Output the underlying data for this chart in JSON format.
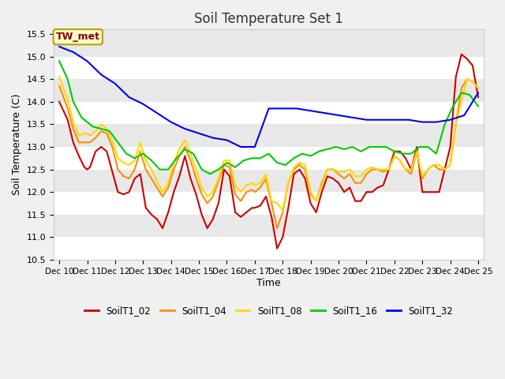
{
  "title": "Soil Temperature Set 1",
  "xlabel": "Time",
  "ylabel": "Soil Temperature (C)",
  "ylim": [
    10.5,
    15.6
  ],
  "fig_bg_color": "#f0f0f0",
  "plot_bg_color": "#e8e8e8",
  "annotation_text": "TW_met",
  "annotation_bg": "#ffffcc",
  "annotation_border": "#b8a000",
  "annotation_text_color": "#880000",
  "grid_color": "#ffffff",
  "series": {
    "SoilT1_02": {
      "color": "#cc0000",
      "x": [
        0,
        0.3,
        0.5,
        0.7,
        0.9,
        1.0,
        1.1,
        1.3,
        1.5,
        1.7,
        1.9,
        2.1,
        2.3,
        2.5,
        2.7,
        2.9,
        3.1,
        3.3,
        3.5,
        3.7,
        3.9,
        4.1,
        4.3,
        4.5,
        4.7,
        4.9,
        5.1,
        5.3,
        5.5,
        5.7,
        5.9,
        6.1,
        6.3,
        6.5,
        6.7,
        6.9,
        7.0,
        7.2,
        7.4,
        7.6,
        7.8,
        8.0,
        8.2,
        8.4,
        8.6,
        8.8,
        9.0,
        9.2,
        9.4,
        9.6,
        9.8,
        10.0,
        10.2,
        10.4,
        10.6,
        10.8,
        11.0,
        11.2,
        11.4,
        11.6,
        11.8,
        12.0,
        12.2,
        12.4,
        12.6,
        12.8,
        13.0,
        13.2,
        13.4,
        13.6,
        13.8,
        14.0,
        14.2,
        14.4,
        14.6,
        14.8,
        15.0
      ],
      "y": [
        14.0,
        13.6,
        13.1,
        12.8,
        12.55,
        12.5,
        12.55,
        12.9,
        13.0,
        12.9,
        12.45,
        12.0,
        11.95,
        12.0,
        12.3,
        12.4,
        11.65,
        11.5,
        11.4,
        11.2,
        11.55,
        12.0,
        12.35,
        12.8,
        12.3,
        11.95,
        11.5,
        11.2,
        11.4,
        11.75,
        12.5,
        12.35,
        11.55,
        11.45,
        11.55,
        11.65,
        11.65,
        11.7,
        11.9,
        11.45,
        10.75,
        11.0,
        11.65,
        12.4,
        12.5,
        12.3,
        11.75,
        11.55,
        12.0,
        12.35,
        12.3,
        12.2,
        12.0,
        12.1,
        11.8,
        11.8,
        12.0,
        12.0,
        12.1,
        12.15,
        12.5,
        12.9,
        12.9,
        12.75,
        12.5,
        13.0,
        12.0,
        12.0,
        12.0,
        12.0,
        12.5,
        13.0,
        14.55,
        15.05,
        14.95,
        14.8,
        14.1
      ]
    },
    "SoilT1_04": {
      "color": "#ff8c00",
      "x": [
        0,
        0.3,
        0.5,
        0.7,
        0.9,
        1.0,
        1.1,
        1.3,
        1.5,
        1.7,
        1.9,
        2.1,
        2.3,
        2.5,
        2.7,
        2.9,
        3.1,
        3.3,
        3.5,
        3.7,
        3.9,
        4.1,
        4.3,
        4.5,
        4.7,
        4.9,
        5.1,
        5.3,
        5.5,
        5.7,
        5.9,
        6.1,
        6.3,
        6.5,
        6.7,
        6.9,
        7.0,
        7.2,
        7.4,
        7.6,
        7.8,
        8.0,
        8.2,
        8.4,
        8.6,
        8.8,
        9.0,
        9.2,
        9.4,
        9.6,
        9.8,
        10.0,
        10.2,
        10.4,
        10.6,
        10.8,
        11.0,
        11.2,
        11.4,
        11.6,
        11.8,
        12.0,
        12.2,
        12.4,
        12.6,
        12.8,
        13.0,
        13.2,
        13.4,
        13.6,
        13.8,
        14.0,
        14.2,
        14.4,
        14.6,
        14.8,
        15.0
      ],
      "y": [
        14.35,
        13.85,
        13.4,
        13.1,
        13.1,
        13.1,
        13.1,
        13.2,
        13.35,
        13.3,
        13.0,
        12.5,
        12.35,
        12.3,
        12.5,
        12.9,
        12.5,
        12.3,
        12.1,
        11.9,
        12.1,
        12.5,
        12.8,
        13.0,
        12.7,
        12.3,
        11.95,
        11.75,
        11.9,
        12.25,
        12.6,
        12.55,
        11.95,
        11.8,
        12.0,
        12.05,
        12.0,
        12.1,
        12.3,
        11.75,
        11.2,
        11.55,
        12.2,
        12.5,
        12.6,
        12.5,
        11.95,
        11.8,
        12.2,
        12.5,
        12.5,
        12.4,
        12.3,
        12.4,
        12.2,
        12.2,
        12.4,
        12.5,
        12.5,
        12.45,
        12.5,
        12.8,
        12.7,
        12.5,
        12.4,
        12.9,
        12.3,
        12.5,
        12.6,
        12.5,
        12.5,
        12.6,
        13.5,
        14.3,
        14.5,
        14.45,
        14.3
      ]
    },
    "SoilT1_08": {
      "color": "#ffd700",
      "x": [
        0,
        0.3,
        0.5,
        0.7,
        0.9,
        1.0,
        1.1,
        1.3,
        1.5,
        1.7,
        1.9,
        2.1,
        2.3,
        2.5,
        2.7,
        2.9,
        3.1,
        3.3,
        3.5,
        3.7,
        3.9,
        4.1,
        4.3,
        4.5,
        4.7,
        4.9,
        5.1,
        5.3,
        5.5,
        5.7,
        5.9,
        6.1,
        6.3,
        6.5,
        6.7,
        6.9,
        7.0,
        7.2,
        7.4,
        7.6,
        7.8,
        8.0,
        8.2,
        8.4,
        8.6,
        8.8,
        9.0,
        9.2,
        9.4,
        9.6,
        9.8,
        10.0,
        10.2,
        10.4,
        10.6,
        10.8,
        11.0,
        11.2,
        11.4,
        11.6,
        11.8,
        12.0,
        12.2,
        12.4,
        12.6,
        12.8,
        13.0,
        13.2,
        13.4,
        13.6,
        13.8,
        14.0,
        14.2,
        14.4,
        14.6,
        14.8,
        15.0
      ],
      "y": [
        14.55,
        14.05,
        13.55,
        13.25,
        13.3,
        13.3,
        13.25,
        13.35,
        13.5,
        13.4,
        13.15,
        12.75,
        12.65,
        12.6,
        12.7,
        13.1,
        12.7,
        12.5,
        12.25,
        12.0,
        12.2,
        12.65,
        12.95,
        13.15,
        12.85,
        12.5,
        12.1,
        11.9,
        12.0,
        12.3,
        12.7,
        12.7,
        12.15,
        12.0,
        12.15,
        12.2,
        12.15,
        12.2,
        12.4,
        11.8,
        11.75,
        11.6,
        12.2,
        12.55,
        12.65,
        12.6,
        12.0,
        11.8,
        12.15,
        12.5,
        12.5,
        12.45,
        12.45,
        12.5,
        12.35,
        12.35,
        12.5,
        12.55,
        12.5,
        12.5,
        12.5,
        12.8,
        12.7,
        12.5,
        12.5,
        12.9,
        12.35,
        12.5,
        12.6,
        12.6,
        12.5,
        12.6,
        13.5,
        14.0,
        14.5,
        14.45,
        14.3
      ]
    },
    "SoilT1_16": {
      "color": "#00cc00",
      "x": [
        0,
        0.3,
        0.5,
        0.8,
        1.0,
        1.2,
        1.5,
        1.8,
        2.1,
        2.4,
        2.7,
        3.0,
        3.3,
        3.6,
        3.9,
        4.2,
        4.5,
        4.8,
        5.1,
        5.4,
        5.7,
        6.0,
        6.3,
        6.6,
        6.9,
        7.2,
        7.5,
        7.8,
        8.1,
        8.4,
        8.7,
        9.0,
        9.3,
        9.6,
        9.9,
        10.2,
        10.5,
        10.8,
        11.1,
        11.4,
        11.7,
        12.0,
        12.3,
        12.6,
        12.9,
        13.2,
        13.5,
        13.8,
        14.1,
        14.4,
        14.7,
        15.0
      ],
      "y": [
        14.9,
        14.5,
        14.0,
        13.65,
        13.55,
        13.45,
        13.4,
        13.35,
        13.1,
        12.85,
        12.75,
        12.85,
        12.7,
        12.5,
        12.5,
        12.75,
        12.95,
        12.85,
        12.5,
        12.4,
        12.5,
        12.65,
        12.55,
        12.7,
        12.75,
        12.75,
        12.85,
        12.65,
        12.6,
        12.75,
        12.85,
        12.8,
        12.9,
        12.95,
        13.0,
        12.95,
        13.0,
        12.9,
        13.0,
        13.0,
        13.0,
        12.9,
        12.85,
        12.85,
        13.0,
        13.0,
        12.85,
        13.5,
        13.9,
        14.2,
        14.15,
        13.9
      ]
    },
    "SoilT1_32": {
      "color": "#0000ee",
      "x": [
        0,
        0.5,
        1.0,
        1.5,
        2.0,
        2.5,
        3.0,
        3.5,
        4.0,
        4.5,
        5.0,
        5.5,
        6.0,
        6.5,
        7.0,
        7.5,
        8.0,
        8.5,
        9.0,
        9.5,
        10.0,
        10.5,
        11.0,
        11.5,
        12.0,
        12.5,
        13.0,
        13.5,
        14.0,
        14.5,
        15.0
      ],
      "y": [
        15.22,
        15.1,
        14.9,
        14.6,
        14.4,
        14.1,
        13.95,
        13.75,
        13.55,
        13.4,
        13.3,
        13.2,
        13.15,
        13.0,
        13.0,
        13.85,
        13.85,
        13.85,
        13.8,
        13.75,
        13.7,
        13.65,
        13.6,
        13.6,
        13.6,
        13.6,
        13.55,
        13.55,
        13.6,
        13.7,
        14.2
      ]
    }
  },
  "x_ticks": [
    0,
    1,
    2,
    3,
    4,
    5,
    6,
    7,
    8,
    9,
    10,
    11,
    12,
    13,
    14,
    15
  ],
  "x_tick_labels": [
    "Dec 10",
    "Dec 11",
    "Dec 12",
    "Dec 13",
    "Dec 14",
    "Dec 15",
    "Dec 16",
    "Dec 17",
    "Dec 18",
    "Dec 19",
    "Dec 20",
    "Dec 21",
    "Dec 22",
    "Dec 23",
    "Dec 24",
    "Dec 25"
  ],
  "legend_entries": [
    "SoilT1_02",
    "SoilT1_04",
    "SoilT1_08",
    "SoilT1_16",
    "SoilT1_32"
  ],
  "legend_colors": [
    "#cc0000",
    "#ff8c00",
    "#ffd700",
    "#00cc00",
    "#0000ee"
  ]
}
